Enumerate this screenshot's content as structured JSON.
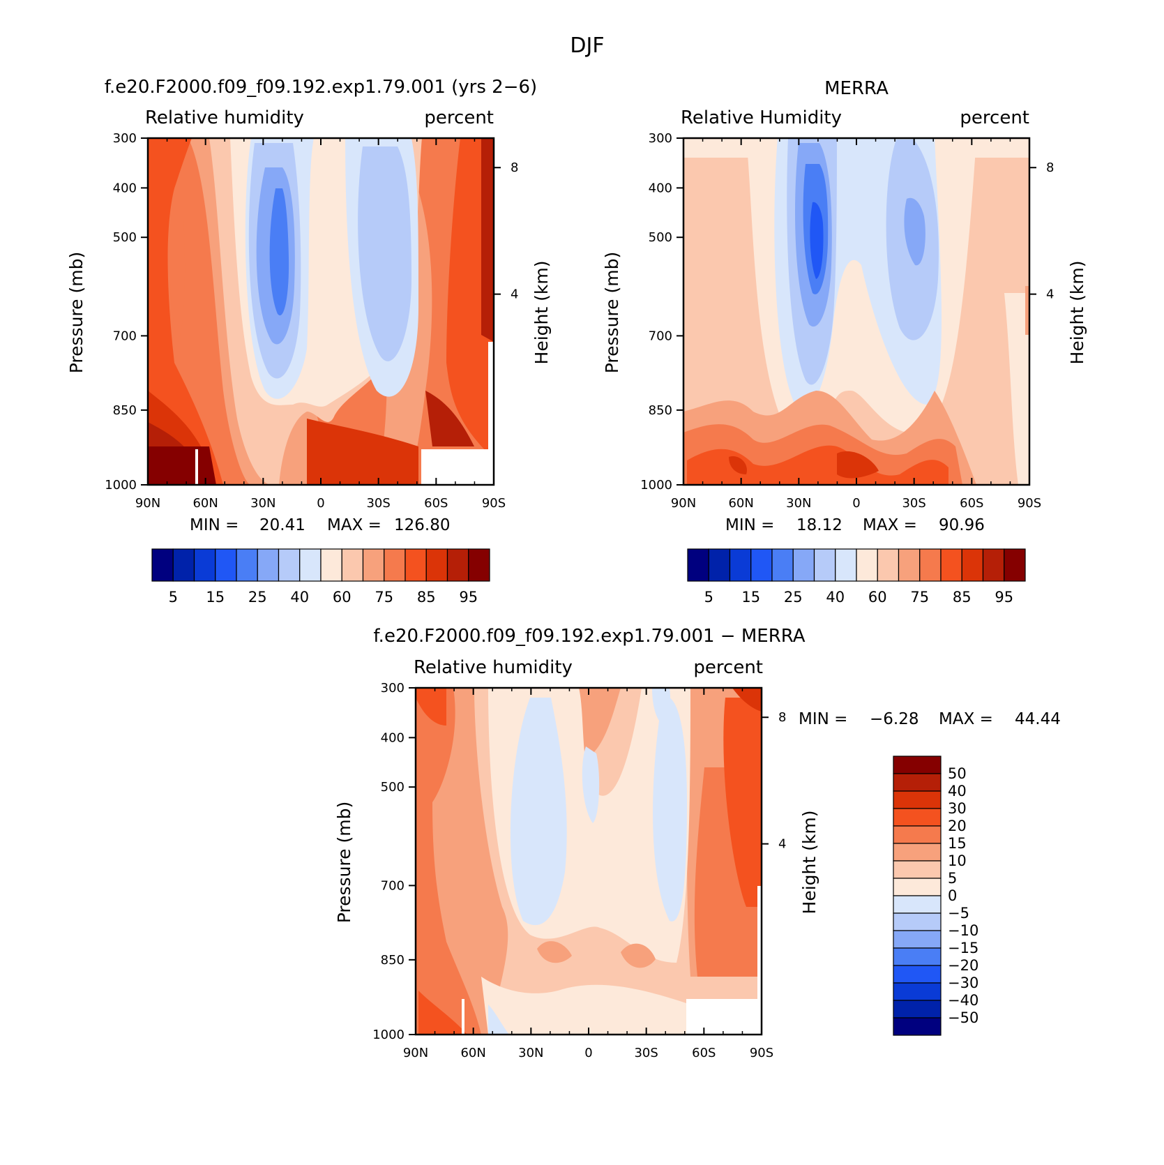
{
  "figure": {
    "title": "DJF"
  },
  "panels": [
    {
      "id": "model",
      "title": "f.e20.F2000.f09_f09.192.exp1.79.001 (yrs 2−6)",
      "variable": "Relative humidity",
      "units": "percent",
      "ylabel": "Pressure (mb)",
      "y2label": "Height (km)",
      "stats": {
        "min_label": "MIN =",
        "min": "20.41",
        "max_label": "MAX =",
        "max": "126.80"
      }
    },
    {
      "id": "obs",
      "title": "MERRA",
      "variable": "Relative Humidity",
      "units": "percent",
      "ylabel": "Pressure (mb)",
      "y2label": "Height (km)",
      "stats": {
        "min_label": "MIN =",
        "min": "18.12",
        "max_label": "MAX =",
        "max": "90.96"
      }
    },
    {
      "id": "diff",
      "title": "f.e20.F2000.f09_f09.192.exp1.79.001 − MERRA",
      "variable": "Relative humidity",
      "units": "percent",
      "ylabel": "Pressure (mb)",
      "y2label": "Height (km)",
      "stats": {
        "min_label": "MIN =",
        "min": "−6.28",
        "max_label": "MAX =",
        "max": "44.44"
      }
    }
  ],
  "axes": {
    "x_ticks": [
      "90N",
      "60N",
      "30N",
      "0",
      "30S",
      "60S",
      "90S"
    ],
    "y_ticks": [
      "300",
      "400",
      "500",
      "700",
      "850",
      "1000"
    ],
    "y2_ticks": [
      "8",
      "4"
    ]
  },
  "colorbars": {
    "abs_colors": [
      "#00007f",
      "#0022aa",
      "#0a3bd6",
      "#2057f5",
      "#4a7ef5",
      "#86a8f7",
      "#b6cbf9",
      "#d8e6fb",
      "#fde9da",
      "#fbc8ae",
      "#f7a17c",
      "#f57a4d",
      "#f4521f",
      "#db3408",
      "#b51f07",
      "#850000"
    ],
    "abs_labels": [
      "5",
      "15",
      "25",
      "40",
      "60",
      "75",
      "85",
      "95"
    ],
    "diff_colors": [
      "#850000",
      "#b51f07",
      "#db3408",
      "#f4521f",
      "#f57a4d",
      "#f7a17c",
      "#fbc8ae",
      "#fde9da",
      "#d8e6fb",
      "#b6cbf9",
      "#86a8f7",
      "#4a7ef5",
      "#2057f5",
      "#0a3bd6",
      "#0022aa",
      "#00007f"
    ],
    "diff_labels": [
      "50",
      "40",
      "30",
      "20",
      "15",
      "10",
      "5",
      "0",
      "−5",
      "−10",
      "−15",
      "−20",
      "−30",
      "−40",
      "−50"
    ]
  },
  "chart_data": [
    {
      "type": "heatmap",
      "title": "f.e20.F2000.f09_f09.192.exp1.79.001 (yrs 2−6)",
      "subtitle": "Relative humidity (percent)",
      "xlabel": "",
      "ylabel": "Pressure (mb)",
      "x": [
        90,
        60,
        30,
        0,
        -30,
        -60,
        -90
      ],
      "y": [
        300,
        400,
        500,
        700,
        850,
        1000
      ],
      "values": [
        [
          70,
          60,
          42,
          58,
          46,
          70,
          88
        ],
        [
          75,
          65,
          30,
          55,
          40,
          72,
          88
        ],
        [
          72,
          62,
          25,
          55,
          38,
          74,
          87
        ],
        [
          70,
          60,
          32,
          56,
          40,
          76,
          88
        ],
        [
          82,
          68,
          58,
          75,
          62,
          85,
          90
        ],
        [
          95,
          70,
          65,
          82,
          82,
          88,
          88
        ]
      ],
      "ylim": [
        1000,
        300
      ],
      "min": 20.41,
      "max": 126.8
    },
    {
      "type": "heatmap",
      "title": "MERRA",
      "subtitle": "Relative Humidity (percent)",
      "xlabel": "",
      "ylabel": "Pressure (mb)",
      "x": [
        90,
        60,
        30,
        0,
        -30,
        -60,
        -90
      ],
      "y": [
        300,
        400,
        500,
        700,
        850,
        1000
      ],
      "values": [
        [
          58,
          57,
          38,
          46,
          46,
          57,
          57
        ],
        [
          62,
          62,
          24,
          45,
          34,
          62,
          62
        ],
        [
          62,
          62,
          20,
          56,
          32,
          62,
          62
        ],
        [
          62,
          62,
          30,
          62,
          40,
          62,
          62
        ],
        [
          72,
          66,
          50,
          75,
          57,
          72,
          57
        ],
        [
          82,
          80,
          62,
          88,
          72,
          85,
          57
        ]
      ],
      "ylim": [
        1000,
        300
      ],
      "min": 18.12,
      "max": 90.96
    },
    {
      "type": "heatmap",
      "title": "f.e20.F2000.f09_f09.192.exp1.79.001 − MERRA",
      "subtitle": "Relative humidity (percent)",
      "xlabel": "",
      "ylabel": "Pressure (mb)",
      "x": [
        90,
        60,
        30,
        0,
        -30,
        -60,
        -90
      ],
      "y": [
        300,
        400,
        500,
        700,
        850,
        1000
      ],
      "values": [
        [
          22,
          8,
          3,
          10,
          -2,
          14,
          28
        ],
        [
          18,
          8,
          -2,
          6,
          4,
          14,
          24
        ],
        [
          14,
          8,
          -2,
          4,
          -2,
          14,
          20
        ],
        [
          12,
          6,
          -2,
          4,
          -2,
          16,
          22
        ],
        [
          14,
          6,
          8,
          4,
          8,
          16,
          25
        ],
        [
          18,
          3,
          -2,
          4,
          4,
          6,
          10
        ]
      ],
      "ylim": [
        1000,
        300
      ],
      "min": -6.28,
      "max": 44.44
    }
  ]
}
